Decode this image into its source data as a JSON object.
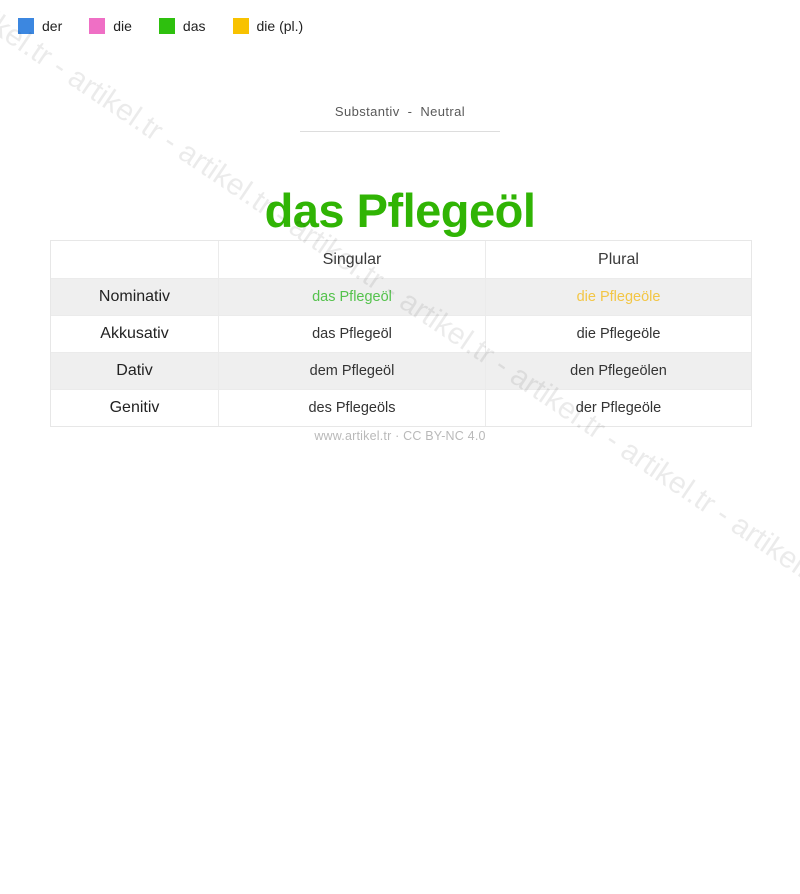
{
  "watermark": {
    "text": "artikel.tr - artikel.tr - artikel.tr - artikel.tr - artikel.tr - artikel.tr - artikel.tr - artikel.tr - artikel.tr - artikel.tr - artikel.tr - artikel.tr"
  },
  "legend": {
    "items": [
      {
        "label": "der",
        "color": "#3c87e0"
      },
      {
        "label": "die",
        "color": "#ef6fc5"
      },
      {
        "label": "das",
        "color": "#2ec00e"
      },
      {
        "label": "die (pl.)",
        "color": "#f8c200"
      }
    ]
  },
  "header": {
    "category": "Substantiv - Neutral",
    "title": "das Pflegeöl",
    "title_color": "#30b404"
  },
  "table": {
    "columns": [
      "",
      "Singular",
      "Plural"
    ],
    "rows": [
      {
        "case": "Nominativ",
        "singular": "das Pflegeöl",
        "plural": "die Pflegeöle",
        "singular_color": "#55c24d",
        "plural_color": "#f3c645",
        "striped": true
      },
      {
        "case": "Akkusativ",
        "singular": "das Pflegeöl",
        "plural": "die Pflegeöle"
      },
      {
        "case": "Dativ",
        "singular": "dem Pflegeöl",
        "plural": "den Pflegeölen",
        "striped": true
      },
      {
        "case": "Genitiv",
        "singular": "des Pflegeöls",
        "plural": "der Pflegeöle"
      }
    ]
  },
  "footer": {
    "text": "www.artikel.tr · CC BY-NC 4.0"
  }
}
